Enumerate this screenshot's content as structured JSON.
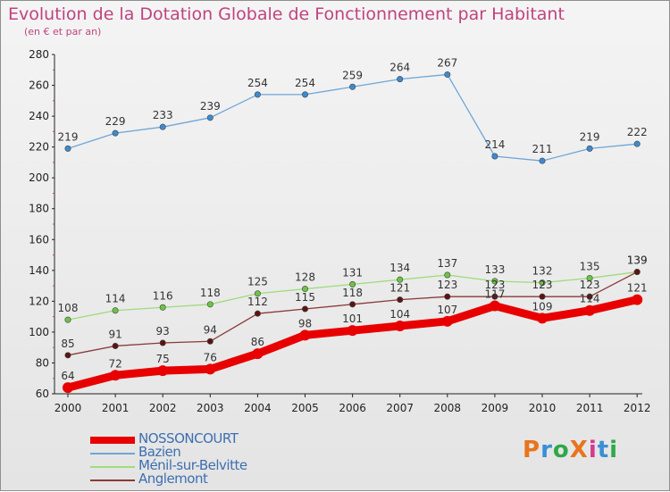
{
  "header": {
    "title": "Evolution de la Dotation Globale de Fonctionnement par Habitant",
    "subtitle": "(en € et par an)"
  },
  "logo": {
    "text": "ProXiti",
    "colors": [
      "#e8741e",
      "#3a8fd6",
      "#2fa84a",
      "#e8741e",
      "#d63a8f",
      "#3a8fd6",
      "#2fa84a"
    ]
  },
  "chart_data": {
    "type": "line",
    "x": [
      "2000",
      "2001",
      "2002",
      "2003",
      "2004",
      "2005",
      "2006",
      "2007",
      "2008",
      "2009",
      "2010",
      "2011",
      "2012"
    ],
    "ylim": [
      60,
      280
    ],
    "yticks": [
      60,
      80,
      100,
      120,
      140,
      160,
      180,
      200,
      220,
      240,
      260,
      280
    ],
    "grid": false,
    "legend_position": "bottom-left",
    "series": [
      {
        "name": "NOSSONCOURT",
        "color": "#e80000",
        "marker": "#e80000",
        "values": [
          64,
          72,
          75,
          76,
          86,
          98,
          101,
          104,
          107,
          117,
          109,
          114,
          121
        ],
        "labels": [
          "64",
          "72",
          "75",
          "76",
          "86",
          "98",
          "101",
          "104",
          "107",
          "117",
          "109",
          "114",
          "121"
        ]
      },
      {
        "name": "Bazien",
        "color": "#6ea6d8",
        "marker": "#3d8ad0",
        "values": [
          219,
          229,
          233,
          239,
          254,
          254,
          259,
          264,
          267,
          214,
          211,
          219,
          222
        ],
        "labels": [
          "219",
          "229",
          "233",
          "239",
          "254",
          "254",
          "259",
          "264",
          "267",
          "214",
          "211",
          "219",
          "222"
        ]
      },
      {
        "name": "Ménil-sur-Belvitte",
        "color": "#9edc7c",
        "marker": "#6cc444",
        "values": [
          108,
          114,
          116,
          118,
          125,
          128,
          131,
          134,
          137,
          133,
          132,
          135,
          139
        ],
        "labels": [
          "108",
          "114",
          "116",
          "118",
          "125",
          "128",
          "131",
          "134",
          "137",
          "133",
          "132",
          "135",
          "139"
        ]
      },
      {
        "name": "Anglemont",
        "color": "#8a3a3a",
        "marker": "#5a1414",
        "values": [
          85,
          91,
          93,
          94,
          112,
          115,
          118,
          121,
          123,
          123,
          123,
          123,
          139
        ],
        "labels": [
          "85",
          "91",
          "93",
          "94",
          "112",
          "115",
          "118",
          "121",
          "123",
          "123",
          "123",
          "123",
          "139"
        ]
      }
    ]
  }
}
